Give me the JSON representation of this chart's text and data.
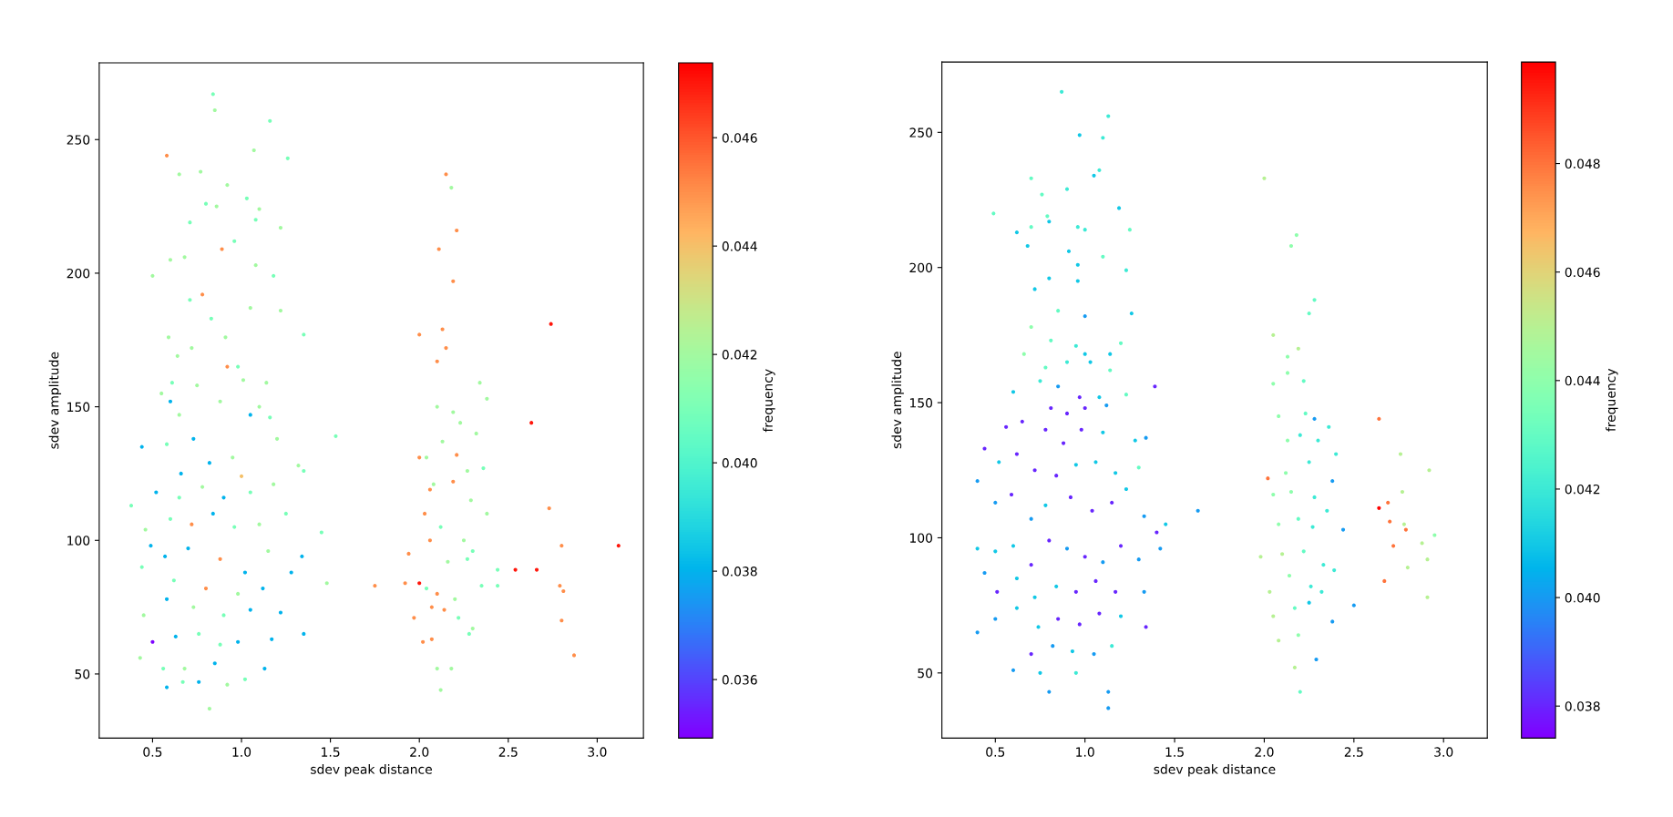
{
  "chart_data": [
    {
      "type": "scatter",
      "xlabel": "sdev peak distance",
      "ylabel": "sdev amplitude",
      "clabel": "frequency",
      "xlim": [
        0.2,
        3.26
      ],
      "ylim": [
        26,
        278.7
      ],
      "clim": [
        0.03492,
        0.04738
      ],
      "xticks": [
        0.5,
        {
          "value": 1,
          "label": "1.0"
        },
        1.5,
        {
          "value": 2,
          "label": "2.0"
        },
        2.5,
        {
          "value": 3,
          "label": "3.0"
        }
      ],
      "yticks": [
        50,
        100,
        150,
        200,
        250
      ],
      "cticks": [
        0.036,
        0.038,
        {
          "value": 0.04,
          "label": "0.040"
        },
        0.042,
        0.044,
        0.046
      ],
      "x": [
        0.84,
        0.85,
        1.16,
        0.58,
        1.07,
        1.26,
        0.65,
        0.77,
        0.92,
        1.03,
        0.8,
        0.86,
        1.1,
        1.08,
        1.22,
        0.71,
        0.89,
        0.96,
        1.08,
        0.6,
        0.68,
        0.5,
        1.18,
        0.78,
        0.71,
        0.83,
        1.05,
        1.22,
        0.59,
        0.91,
        1.35,
        0.72,
        0.98,
        0.64,
        0.92,
        0.61,
        1.01,
        1.14,
        0.55,
        0.75,
        0.6,
        0.88,
        1.1,
        0.65,
        1.05,
        1.16,
        0.44,
        0.58,
        0.73,
        0.82,
        0.95,
        1.2,
        1.53,
        0.66,
        1.0,
        1.32,
        0.38,
        0.52,
        0.65,
        0.78,
        0.9,
        1.05,
        1.18,
        1.35,
        0.46,
        0.6,
        0.72,
        0.84,
        0.96,
        1.1,
        1.25,
        1.45,
        0.49,
        0.57,
        0.7,
        0.88,
        1.02,
        1.15,
        1.34,
        0.44,
        0.62,
        0.8,
        0.98,
        1.12,
        1.28,
        1.48,
        0.45,
        0.58,
        0.73,
        0.9,
        1.05,
        1.22,
        0.5,
        0.63,
        0.76,
        0.88,
        0.98,
        1.17,
        1.35,
        0.43,
        0.56,
        0.68,
        0.85,
        0.92,
        1.02,
        1.13,
        0.58,
        0.67,
        0.76,
        0.82,
        2.15,
        2.18,
        2.21,
        2.11,
        2.19,
        2.0,
        2.13,
        2.15,
        2.34,
        2.1,
        2.38,
        2.1,
        2.19,
        2.23,
        2.13,
        2.32,
        2.0,
        2.04,
        2.21,
        2.27,
        2.36,
        2.06,
        2.08,
        2.19,
        2.29,
        2.38,
        2.03,
        2.12,
        2.25,
        2.3,
        1.94,
        2.06,
        2.16,
        2.27,
        2.0,
        1.92,
        1.75,
        2.1,
        2.2,
        2.35,
        2.44,
        2.44,
        2.04,
        2.07,
        2.14,
        2.22,
        2.3,
        1.97,
        2.02,
        2.07,
        2.28,
        2.1,
        2.18,
        2.12,
        2.74,
        2.63,
        2.73,
        3.12,
        2.54,
        2.66,
        2.8,
        2.79,
        2.81,
        2.8,
        2.87
      ],
      "values": [
        267,
        261,
        257,
        244,
        246,
        243,
        237,
        238,
        233,
        228,
        226,
        225,
        224,
        220,
        217,
        219,
        209,
        212,
        203,
        205,
        206,
        199,
        199,
        192,
        190,
        183,
        187,
        186,
        176,
        176,
        177,
        172,
        165,
        169,
        165,
        159,
        160,
        159,
        155,
        158,
        152,
        152,
        150,
        147,
        147,
        146,
        135,
        136,
        138,
        129,
        131,
        138,
        139,
        125,
        124,
        128,
        113,
        118,
        116,
        120,
        116,
        118,
        121,
        126,
        104,
        108,
        106,
        110,
        105,
        106,
        110,
        103,
        98,
        94,
        97,
        93,
        88,
        96,
        94,
        90,
        85,
        82,
        80,
        82,
        88,
        84,
        72,
        78,
        75,
        72,
        74,
        73,
        62,
        64,
        65,
        61,
        62,
        63,
        65,
        56,
        52,
        52,
        54,
        46,
        48,
        52,
        45,
        47,
        47,
        37,
        237,
        232,
        216,
        209,
        197,
        177,
        179,
        172,
        159,
        167,
        153,
        150,
        148,
        144,
        137,
        140,
        131,
        131,
        132,
        126,
        127,
        119,
        121,
        122,
        115,
        110,
        110,
        105,
        100,
        96,
        95,
        100,
        92,
        93,
        84,
        84,
        83,
        80,
        78,
        83,
        89,
        83,
        82,
        75,
        74,
        71,
        67,
        71,
        62,
        63,
        65,
        52,
        52,
        44,
        181,
        144,
        112,
        98,
        89,
        89,
        98,
        83,
        81,
        70,
        57
      ],
      "cvalues": [
        0.041,
        0.042,
        0.041,
        0.045,
        0.042,
        0.041,
        0.042,
        0.042,
        0.042,
        0.041,
        0.041,
        0.042,
        0.042,
        0.041,
        0.042,
        0.041,
        0.045,
        0.041,
        0.042,
        0.042,
        0.042,
        0.042,
        0.041,
        0.045,
        0.041,
        0.041,
        0.042,
        0.042,
        0.042,
        0.042,
        0.041,
        0.042,
        0.041,
        0.042,
        0.045,
        0.041,
        0.042,
        0.042,
        0.042,
        0.042,
        0.038,
        0.042,
        0.042,
        0.042,
        0.038,
        0.041,
        0.038,
        0.041,
        0.038,
        0.038,
        0.042,
        0.042,
        0.041,
        0.038,
        0.044,
        0.042,
        0.041,
        0.038,
        0.041,
        0.042,
        0.038,
        0.041,
        0.042,
        0.041,
        0.042,
        0.041,
        0.045,
        0.038,
        0.041,
        0.042,
        0.041,
        0.041,
        0.038,
        0.038,
        0.038,
        0.045,
        0.038,
        0.042,
        0.038,
        0.041,
        0.041,
        0.045,
        0.042,
        0.038,
        0.038,
        0.042,
        0.042,
        0.038,
        0.042,
        0.041,
        0.038,
        0.038,
        0.035,
        0.038,
        0.041,
        0.041,
        0.038,
        0.038,
        0.038,
        0.042,
        0.041,
        0.042,
        0.038,
        0.042,
        0.041,
        0.038,
        0.038,
        0.041,
        0.038,
        0.042,
        0.045,
        0.042,
        0.045,
        0.045,
        0.045,
        0.045,
        0.045,
        0.045,
        0.042,
        0.045,
        0.042,
        0.042,
        0.042,
        0.042,
        0.042,
        0.042,
        0.045,
        0.042,
        0.045,
        0.042,
        0.041,
        0.045,
        0.042,
        0.045,
        0.042,
        0.042,
        0.045,
        0.041,
        0.042,
        0.041,
        0.045,
        0.045,
        0.042,
        0.041,
        0.047,
        0.045,
        0.045,
        0.045,
        0.042,
        0.041,
        0.041,
        0.041,
        0.041,
        0.045,
        0.045,
        0.041,
        0.042,
        0.045,
        0.045,
        0.045,
        0.041,
        0.042,
        0.042,
        0.042,
        0.047,
        0.047,
        0.045,
        0.047,
        0.047,
        0.047,
        0.045,
        0.045,
        0.045,
        0.045,
        0.045
      ]
    },
    {
      "type": "scatter",
      "xlabel": "sdev peak distance",
      "ylabel": "sdev amplitude",
      "clabel": "frequency",
      "xlim": [
        0.202,
        3.244
      ],
      "ylim": [
        25.9,
        276
      ],
      "clim": [
        0.03741,
        0.04987
      ],
      "xticks": [
        0.5,
        {
          "value": 1,
          "label": "1.0"
        },
        1.5,
        {
          "value": 2,
          "label": "2.0"
        },
        2.5,
        {
          "value": 3,
          "label": "3.0"
        }
      ],
      "yticks": [
        50,
        100,
        150,
        200,
        250
      ],
      "cticks": [
        0.038,
        {
          "value": 0.04,
          "label": "0.040"
        },
        0.042,
        0.044,
        0.046,
        0.048
      ],
      "x": [
        0.87,
        1.13,
        0.97,
        1.1,
        1.05,
        1.08,
        0.7,
        0.9,
        0.76,
        1.19,
        0.49,
        0.79,
        0.62,
        0.7,
        0.96,
        1.0,
        1.25,
        0.68,
        0.8,
        0.91,
        1.1,
        1.23,
        0.96,
        0.72,
        0.8,
        0.96,
        0.85,
        1.0,
        1.26,
        0.7,
        1.2,
        0.81,
        0.95,
        1.0,
        1.14,
        0.66,
        0.78,
        0.9,
        1.03,
        1.14,
        0.6,
        0.75,
        0.85,
        0.97,
        1.08,
        1.23,
        1.39,
        0.81,
        0.9,
        1.0,
        1.12,
        0.44,
        0.56,
        0.65,
        0.78,
        0.88,
        0.98,
        1.1,
        1.28,
        1.34,
        0.4,
        0.52,
        0.62,
        0.72,
        0.84,
        0.95,
        1.06,
        1.17,
        1.3,
        1.4,
        0.5,
        0.59,
        0.7,
        0.78,
        0.92,
        1.04,
        1.15,
        1.23,
        1.33,
        1.45,
        1.63,
        0.4,
        0.5,
        0.6,
        0.7,
        0.8,
        0.9,
        1.0,
        1.1,
        1.2,
        1.3,
        1.42,
        0.44,
        0.51,
        0.62,
        0.72,
        0.84,
        0.95,
        1.06,
        1.17,
        1.33,
        0.5,
        0.62,
        0.74,
        0.85,
        0.97,
        1.08,
        1.2,
        1.34,
        0.4,
        0.7,
        0.82,
        0.93,
        1.05,
        1.15,
        0.6,
        0.75,
        0.95,
        1.13,
        0.8,
        1.13,
        2.0,
        2.18,
        2.15,
        2.28,
        2.25,
        2.05,
        2.13,
        2.19,
        2.05,
        2.13,
        2.22,
        2.08,
        2.23,
        2.28,
        2.36,
        2.13,
        2.2,
        2.3,
        2.4,
        2.02,
        2.12,
        2.25,
        2.38,
        2.05,
        2.15,
        2.28,
        2.35,
        2.08,
        2.19,
        2.27,
        2.44,
        1.98,
        2.1,
        2.22,
        2.33,
        2.39,
        2.03,
        2.14,
        2.26,
        2.32,
        2.05,
        2.17,
        2.25,
        2.38,
        2.5,
        2.08,
        2.19,
        2.29,
        2.17,
        2.2,
        2.64,
        2.76,
        2.92,
        2.64,
        2.69,
        2.77,
        2.7,
        2.78,
        2.79,
        2.95,
        2.72,
        2.88,
        2.91,
        2.8,
        2.67,
        2.91
      ],
      "values": [
        265,
        256,
        249,
        248,
        234,
        236,
        233,
        229,
        227,
        222,
        220,
        219,
        213,
        215,
        215,
        214,
        214,
        208,
        217,
        206,
        204,
        199,
        201,
        192,
        196,
        195,
        184,
        182,
        183,
        178,
        172,
        173,
        171,
        168,
        168,
        168,
        163,
        165,
        165,
        162,
        154,
        158,
        156,
        152,
        152,
        153,
        156,
        148,
        146,
        148,
        149,
        133,
        141,
        143,
        140,
        135,
        140,
        139,
        136,
        137,
        121,
        128,
        131,
        125,
        123,
        127,
        128,
        124,
        126,
        102,
        113,
        116,
        107,
        112,
        115,
        110,
        113,
        118,
        108,
        105,
        110,
        96,
        95,
        97,
        90,
        99,
        96,
        93,
        91,
        97,
        92,
        96,
        87,
        80,
        85,
        78,
        82,
        80,
        84,
        80,
        80,
        70,
        74,
        67,
        70,
        68,
        72,
        71,
        67,
        65,
        57,
        60,
        58,
        57,
        60,
        51,
        50,
        50,
        43,
        43,
        37,
        233,
        212,
        208,
        188,
        183,
        175,
        167,
        170,
        157,
        161,
        158,
        145,
        146,
        144,
        141,
        136,
        138,
        136,
        131,
        122,
        124,
        128,
        121,
        116,
        117,
        115,
        110,
        105,
        107,
        104,
        103,
        93,
        94,
        95,
        90,
        88,
        80,
        86,
        82,
        80,
        71,
        74,
        76,
        69,
        75,
        62,
        64,
        55,
        52,
        43,
        144,
        131,
        125,
        111,
        113,
        117,
        106,
        105,
        103,
        101,
        97,
        98,
        92,
        89,
        84,
        78
      ],
      "cvalues": [
        0.042,
        0.042,
        0.041,
        0.042,
        0.041,
        0.042,
        0.043,
        0.042,
        0.043,
        0.041,
        0.043,
        0.043,
        0.041,
        0.043,
        0.042,
        0.042,
        0.043,
        0.041,
        0.041,
        0.041,
        0.043,
        0.042,
        0.041,
        0.041,
        0.041,
        0.041,
        0.043,
        0.04,
        0.041,
        0.044,
        0.043,
        0.043,
        0.042,
        0.041,
        0.041,
        0.044,
        0.043,
        0.042,
        0.041,
        0.043,
        0.041,
        0.042,
        0.04,
        0.038,
        0.041,
        0.043,
        0.038,
        0.038,
        0.038,
        0.038,
        0.04,
        0.038,
        0.038,
        0.038,
        0.038,
        0.038,
        0.038,
        0.041,
        0.041,
        0.04,
        0.04,
        0.041,
        0.038,
        0.038,
        0.038,
        0.041,
        0.041,
        0.041,
        0.043,
        0.038,
        0.04,
        0.038,
        0.04,
        0.041,
        0.038,
        0.038,
        0.038,
        0.041,
        0.04,
        0.041,
        0.04,
        0.041,
        0.041,
        0.041,
        0.038,
        0.038,
        0.04,
        0.038,
        0.04,
        0.038,
        0.04,
        0.04,
        0.04,
        0.038,
        0.041,
        0.041,
        0.041,
        0.038,
        0.038,
        0.038,
        0.04,
        0.04,
        0.041,
        0.041,
        0.038,
        0.038,
        0.038,
        0.041,
        0.038,
        0.04,
        0.038,
        0.04,
        0.041,
        0.04,
        0.042,
        0.04,
        0.041,
        0.042,
        0.04,
        0.04,
        0.04,
        0.045,
        0.044,
        0.044,
        0.043,
        0.043,
        0.045,
        0.044,
        0.045,
        0.044,
        0.044,
        0.043,
        0.044,
        0.043,
        0.04,
        0.042,
        0.044,
        0.042,
        0.042,
        0.042,
        0.048,
        0.044,
        0.042,
        0.04,
        0.044,
        0.044,
        0.042,
        0.042,
        0.044,
        0.043,
        0.042,
        0.04,
        0.045,
        0.045,
        0.043,
        0.042,
        0.042,
        0.045,
        0.044,
        0.042,
        0.042,
        0.045,
        0.043,
        0.041,
        0.04,
        0.04,
        0.045,
        0.044,
        0.04,
        0.045,
        0.043,
        0.048,
        0.045,
        0.045,
        0.0498,
        0.048,
        0.045,
        0.048,
        0.045,
        0.048,
        0.044,
        0.048,
        0.045,
        0.045,
        0.045,
        0.048,
        0.045
      ]
    }
  ]
}
